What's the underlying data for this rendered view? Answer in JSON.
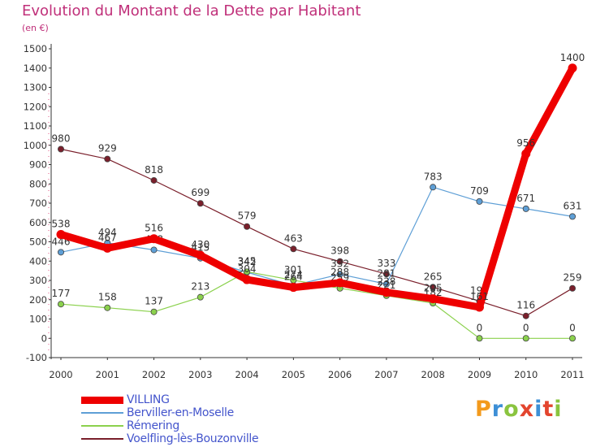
{
  "header": {
    "title": "Evolution du Montant de la Dette par Habitant",
    "unit": "(en €)"
  },
  "brand": {
    "text": "Proxiti",
    "colors": [
      "#f39a1c",
      "#3d8fd6",
      "#8ac43f",
      "#e3452e",
      "#3d8fd6",
      "#e3452e",
      "#8ac43f"
    ]
  },
  "chart_data": {
    "type": "line",
    "title": "Evolution du Montant de la Dette par Habitant",
    "ylabel": "(en €)",
    "xlabel": "",
    "x": [
      "2000",
      "2001",
      "2002",
      "2003",
      "2004",
      "2005",
      "2006",
      "2007",
      "2008",
      "2009",
      "2010",
      "2011"
    ],
    "ylim": [
      -100,
      1500
    ],
    "yticks": [
      -100,
      0,
      100,
      200,
      300,
      400,
      500,
      600,
      700,
      800,
      900,
      1000,
      1100,
      1200,
      1300,
      1400,
      1500
    ],
    "grid": false,
    "legend_position": "bottom-left",
    "series": [
      {
        "name": "Voelfling-lès-Bouzonville",
        "color": "#7a1f2b",
        "values": [
          980,
          929,
          818,
          699,
          579,
          463,
          398,
          333,
          265,
          192,
          116,
          259
        ]
      },
      {
        "name": "Berviller-en-Moselle",
        "color": "#5e9fd6",
        "values": [
          446,
          494,
          458,
          415,
          342,
          274,
          332,
          281,
          783,
          709,
          671,
          631
        ]
      },
      {
        "name": "Rémering",
        "color": "#8bd14d",
        "values": [
          177,
          158,
          137,
          213,
          345,
          301,
          259,
          221,
          182,
          0,
          0,
          0
        ]
      },
      {
        "name": "VILLING",
        "color": "#ee0000",
        "values": [
          538,
          467,
          516,
          430,
          304,
          264,
          288,
          238,
          205,
          161,
          956,
          1400
        ]
      }
    ],
    "point_labels": [
      {
        "series": 0,
        "labels": [
          "980",
          "929",
          "818",
          "699",
          "579",
          "463",
          "398",
          "333",
          "265",
          "192",
          "116",
          "259"
        ]
      },
      {
        "series": 1,
        "labels": [
          "446",
          "494",
          "458",
          "415",
          "342",
          "274",
          "332",
          "281",
          "783",
          "709",
          "671",
          "631"
        ]
      },
      {
        "series": 2,
        "labels": [
          "177",
          "158",
          "137",
          "213",
          "345",
          "301",
          "259",
          "221",
          "182",
          "0",
          "0",
          "0"
        ]
      },
      {
        "series": 3,
        "labels": [
          "538",
          "467",
          "516",
          "430",
          "304",
          "264",
          "288",
          "238",
          "205",
          "161",
          "956",
          "1400"
        ]
      }
    ]
  }
}
